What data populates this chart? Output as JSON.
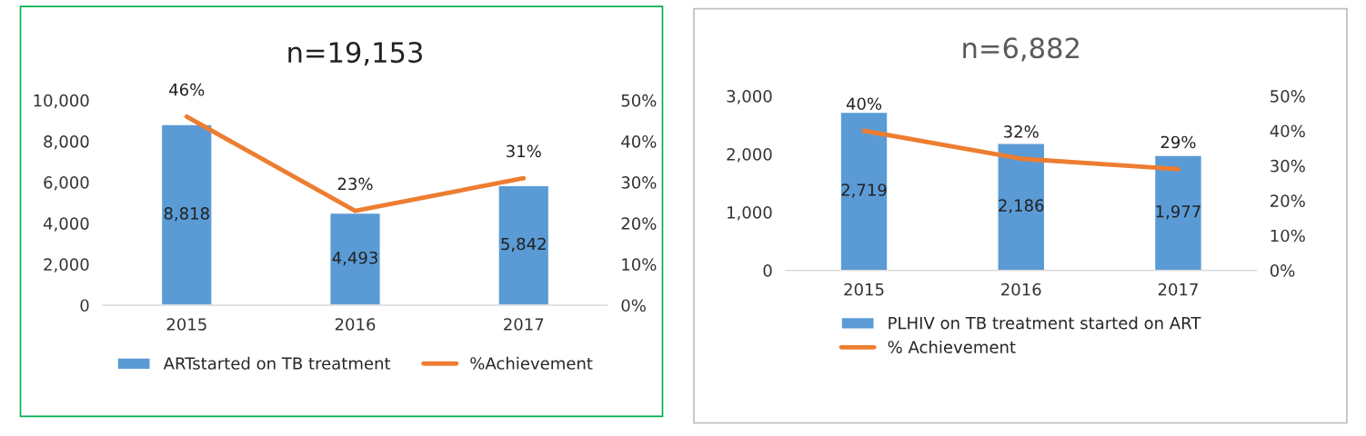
{
  "chart_data": [
    {
      "type": "bar",
      "title": "n=19,153",
      "categories": [
        "2015",
        "2016",
        "2017"
      ],
      "series": [
        {
          "name": "ARTstarted on TB treatment",
          "color": "#5b9bd5",
          "values": [
            8818,
            4493,
            5842
          ],
          "value_labels": [
            "8,818",
            "4,493",
            "5,842"
          ]
        },
        {
          "name": "%Achievement",
          "type": "line",
          "axis": "y2",
          "color": "#ed7d31",
          "values": [
            46,
            23,
            31
          ],
          "value_labels": [
            "46%",
            "23%",
            "31%"
          ]
        }
      ],
      "ylim": [
        0,
        10000
      ],
      "yticks": [
        0,
        {
          "value": 2000,
          "label": "2,000"
        },
        {
          "value": 4000,
          "label": "4,000"
        },
        {
          "value": 6000,
          "label": "6,000"
        },
        {
          "value": 8000,
          "label": "8,000"
        },
        {
          "value": 10000,
          "label": "10,000"
        }
      ],
      "y2lim": [
        0,
        50
      ],
      "y2ticks": [
        {
          "value": 0,
          "label": "0%"
        },
        {
          "value": 10,
          "label": "10%"
        },
        {
          "value": 20,
          "label": "20%"
        },
        {
          "value": 30,
          "label": "30%"
        },
        {
          "value": 40,
          "label": "40%"
        },
        {
          "value": 50,
          "label": "50%"
        }
      ],
      "grid": false,
      "legend": "bottom",
      "marker": "none"
    },
    {
      "type": "bar",
      "title": "n=6,882",
      "categories": [
        "2015",
        "2016",
        "2017"
      ],
      "series": [
        {
          "name": "PLHIV on TB treatment started on ART",
          "color": "#5b9bd5",
          "values": [
            2719,
            2186,
            1977
          ],
          "value_labels": [
            "2,719",
            "2,186",
            "1,977"
          ]
        },
        {
          "name": "% Achievement",
          "type": "line",
          "axis": "y2",
          "color": "#ed7d31",
          "values": [
            40,
            32,
            29
          ],
          "value_labels": [
            "40%",
            "32%",
            "29%"
          ]
        }
      ],
      "ylim": [
        0,
        3000
      ],
      "yticks": [
        0,
        {
          "value": 1000,
          "label": "1,000"
        },
        {
          "value": 2000,
          "label": "2,000"
        },
        {
          "value": 3000,
          "label": "3,000"
        }
      ],
      "y2lim": [
        0,
        50
      ],
      "y2ticks": [
        {
          "value": 0,
          "label": "0%"
        },
        {
          "value": 10,
          "label": "10%"
        },
        {
          "value": 20,
          "label": "20%"
        },
        {
          "value": 30,
          "label": "30%"
        },
        {
          "value": 40,
          "label": "40%"
        },
        {
          "value": 50,
          "label": "50%"
        }
      ],
      "grid": false,
      "legend": "bottom",
      "marker": "none"
    }
  ]
}
